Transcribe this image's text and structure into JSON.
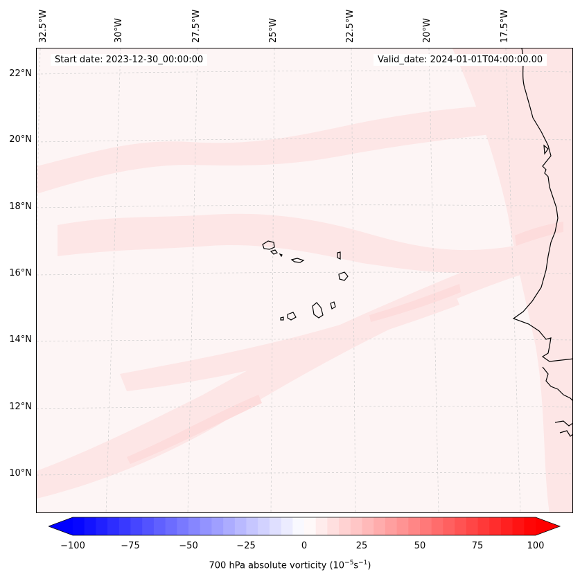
{
  "header": {
    "start_date": "Start date: 2023-12-30_00:00:00",
    "valid_date": "Valid_date: 2024-01-01T04:00:00.00"
  },
  "axes": {
    "longitude_labels": [
      "32.5°W",
      "30°W",
      "27.5°W",
      "25°W",
      "22.5°W",
      "20°W",
      "17.5°W"
    ],
    "latitude_labels": [
      "22°N",
      "20°N",
      "18°N",
      "16°N",
      "14°N",
      "12°N",
      "10°N"
    ]
  },
  "colorbar": {
    "ticks": [
      "−100",
      "−75",
      "−50",
      "−25",
      "0",
      "25",
      "50",
      "75",
      "100"
    ],
    "label": "700 hPa absolute vorticity (10",
    "label_exp1": "−5",
    "label_mid": "s",
    "label_exp2": "−1",
    "label_end": ")",
    "range": [
      -100,
      100
    ],
    "levels": 41,
    "negative_color": "#0000ff",
    "positive_color": "#ff0000",
    "neutral_color": "#ffffff"
  },
  "map": {
    "field_background": "#fdf5f5",
    "band_color": "#fde6e6",
    "coastline_color": "#000000",
    "gridline_color": "#cccccc"
  }
}
